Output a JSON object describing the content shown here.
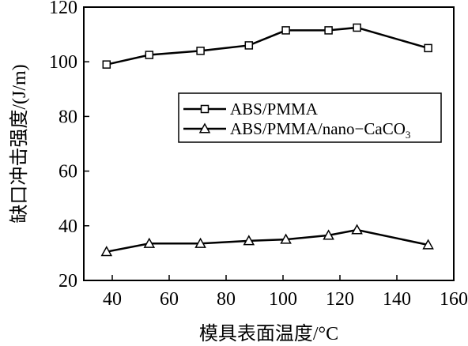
{
  "chart_data": {
    "type": "line",
    "xlabel": "模具表面温度/°C",
    "ylabel": "缺口冲击强度/(J/m)",
    "xlim": [
      30,
      160
    ],
    "ylim": [
      20,
      120
    ],
    "x_ticks": [
      40,
      60,
      80,
      100,
      120,
      140,
      160
    ],
    "y_ticks": [
      20,
      40,
      60,
      80,
      100,
      120
    ],
    "grid": false,
    "legend_position": "center-right",
    "series": [
      {
        "name": "ABS/PMMA",
        "marker": "square",
        "x": [
          38,
          53,
          71,
          88,
          101,
          116,
          126,
          151
        ],
        "y": [
          99,
          102.5,
          104,
          106,
          111.5,
          111.5,
          112.5,
          105
        ]
      },
      {
        "name": "ABS/PMMA/nano−CaCO3",
        "marker": "triangle",
        "x": [
          38,
          53,
          71,
          88,
          101,
          116,
          126,
          151
        ],
        "y": [
          30.5,
          33.5,
          33.5,
          34.5,
          35,
          36.5,
          38.5,
          33
        ]
      }
    ]
  }
}
